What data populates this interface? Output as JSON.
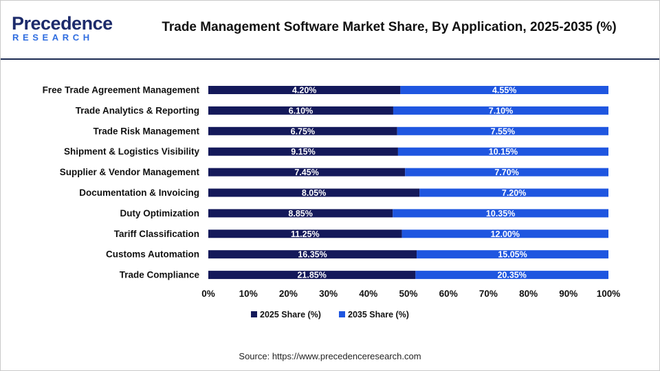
{
  "brand": {
    "name": "Precedence",
    "sub": "RESEARCH",
    "primary_color": "#1d2b6b",
    "accent_color": "#2f6de0"
  },
  "chart_data": {
    "type": "bar",
    "orientation": "horizontal",
    "stacked": true,
    "title": "Trade Management Software Market Share, By Application, 2025-2035 (%)",
    "categories": [
      "Free Trade Agreement Management",
      "Trade Analytics & Reporting",
      "Trade Risk Management",
      "Shipment & Logistics Visibility",
      "Supplier & Vendor Management",
      "Documentation & Invoicing",
      "Duty Optimization",
      "Tariff Classification",
      "Customs Automation",
      "Trade Compliance"
    ],
    "series": [
      {
        "name": "2025 Share (%)",
        "color": "#14195a",
        "values": [
          4.2,
          6.1,
          6.75,
          9.15,
          7.45,
          8.05,
          8.85,
          11.25,
          16.35,
          21.85
        ],
        "labels": [
          "4.20%",
          "6.10%",
          "6.75%",
          "9.15%",
          "7.45%",
          "8.05%",
          "8.85%",
          "11.25%",
          "16.35%",
          "21.85%"
        ]
      },
      {
        "name": "2035 Share (%)",
        "color": "#1f56e0",
        "values": [
          4.55,
          7.1,
          7.55,
          10.15,
          7.7,
          7.2,
          10.35,
          12.0,
          15.05,
          20.35
        ],
        "labels": [
          "4.55%",
          "7.10%",
          "7.55%",
          "10.15%",
          "7.70%",
          "7.20%",
          "10.35%",
          "12.00%",
          "15.05%",
          "20.35%"
        ]
      }
    ],
    "x_ticks": [
      "0%",
      "10%",
      "20%",
      "30%",
      "40%",
      "50%",
      "60%",
      "70%",
      "80%",
      "90%",
      "100%"
    ],
    "xlim": [
      0,
      100
    ],
    "normalized_to_100_percent": true,
    "grid": false,
    "legend_position": "bottom"
  },
  "source": "Source: https://www.precedenceresearch.com"
}
